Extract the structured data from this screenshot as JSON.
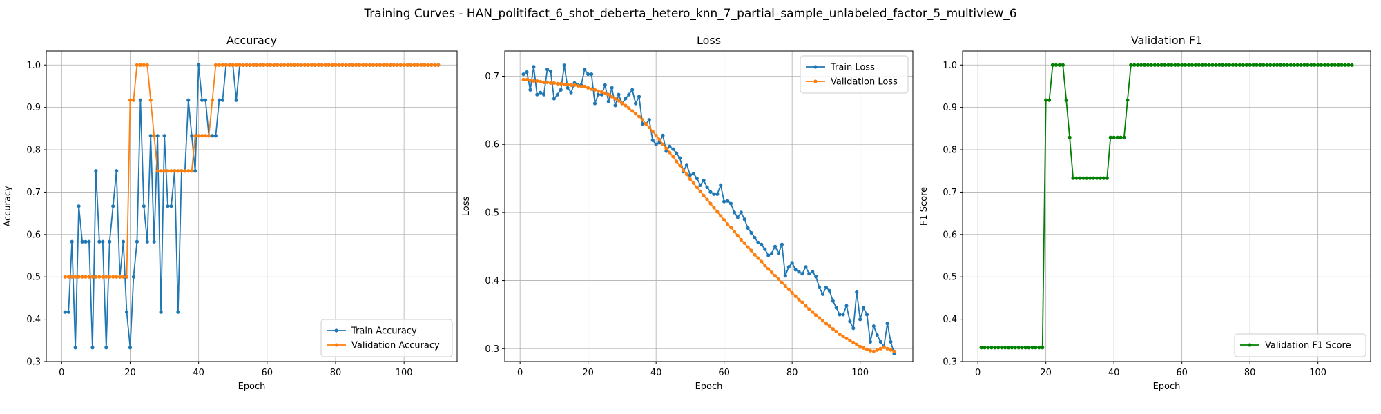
{
  "figure": {
    "title": "Training Curves - HAN_politifact_6_shot_deberta_hetero_knn_7_partial_sample_unlabeled_factor_5_multiview_6"
  },
  "chart_data": [
    {
      "type": "line",
      "title": "Accuracy",
      "xlabel": "Epoch",
      "ylabel": "Accuracy",
      "xlim": [
        -4.5,
        115.5
      ],
      "ylim": [
        0.3,
        1.033
      ],
      "xticks": [
        0,
        20,
        40,
        60,
        80,
        100
      ],
      "yticks": [
        0.3,
        0.4,
        0.5,
        0.6,
        0.7,
        0.8,
        0.9,
        1.0
      ],
      "ytick_format": "1",
      "grid": true,
      "legend": "lower right",
      "series": [
        {
          "name": "Train Accuracy",
          "color": "#1f77b4",
          "segments": [
            {
              "x0": 1,
              "values": [
                0.417,
                0.417,
                0.583,
                0.333,
                0.667,
                0.583,
                0.583,
                0.583,
                0.333,
                0.75,
                0.583,
                0.583,
                0.333,
                0.583,
                0.667,
                0.75,
                0.5,
                0.583,
                0.417,
                0.333,
                0.5,
                0.583,
                0.917,
                0.667,
                0.583,
                0.833,
                0.583,
                0.833,
                0.417,
                0.833,
                0.667,
                0.667,
                0.75,
                0.417,
                0.75,
                0.75,
                0.917,
                0.833,
                0.75,
                1.0,
                0.917,
                0.917,
                0.833,
                0.833,
                0.833,
                0.917,
                0.917,
                1.0,
                1.0,
                1.0,
                0.917,
                1.0
              ]
            },
            {
              "x0": 53,
              "x1": 110,
              "value": 1.0
            }
          ]
        },
        {
          "name": "Validation Accuracy",
          "color": "#ff7f0e",
          "segments": [
            {
              "x0": 1,
              "values": [
                0.5,
                0.5,
                0.5,
                0.5,
                0.5,
                0.5,
                0.5,
                0.5,
                0.5,
                0.5,
                0.5,
                0.5,
                0.5,
                0.5,
                0.5,
                0.5,
                0.5,
                0.5,
                0.5,
                0.917,
                0.917,
                1.0,
                1.0,
                1.0,
                1.0,
                0.917,
                0.833,
                0.75,
                0.75,
                0.75,
                0.75,
                0.75,
                0.75,
                0.75,
                0.75,
                0.75,
                0.75,
                0.75,
                0.833,
                0.833,
                0.833,
                0.833,
                0.833,
                0.917,
                1.0
              ]
            },
            {
              "x0": 46,
              "x1": 110,
              "value": 1.0
            }
          ]
        }
      ]
    },
    {
      "type": "line",
      "title": "Loss",
      "xlabel": "Epoch",
      "ylabel": "Loss",
      "xlim": [
        -4.5,
        115.5
      ],
      "ylim": [
        0.281,
        0.737
      ],
      "xticks": [
        0,
        20,
        40,
        60,
        80,
        100
      ],
      "yticks": [
        0.3,
        0.4,
        0.5,
        0.6,
        0.7
      ],
      "ytick_format": "1",
      "grid": true,
      "legend": "upper right",
      "series": [
        {
          "name": "Train Loss",
          "color": "#1f77b4",
          "segments": [
            {
              "x0": 1,
              "values": [
                0.703,
                0.706,
                0.68,
                0.714,
                0.673,
                0.676,
                0.673,
                0.71,
                0.707,
                0.667,
                0.673,
                0.68,
                0.716,
                0.683,
                0.676,
                0.69,
                0.687,
                0.687,
                0.71,
                0.703,
                0.703,
                0.66,
                0.673,
                0.673,
                0.687,
                0.663,
                0.683,
                0.657,
                0.673,
                0.66,
                0.667,
                0.673,
                0.68,
                0.66,
                0.67,
                0.63,
                0.63,
                0.636,
                0.606,
                0.6,
                0.603,
                0.613,
                0.59,
                0.597,
                0.593,
                0.587,
                0.58,
                0.56,
                0.57,
                0.555,
                0.557,
                0.55,
                0.54,
                0.547,
                0.537,
                0.53,
                0.527,
                0.527,
                0.54,
                0.516,
                0.517,
                0.513,
                0.5,
                0.493,
                0.5,
                0.49,
                0.477,
                0.47,
                0.463,
                0.456,
                0.453,
                0.446,
                0.437,
                0.44,
                0.45,
                0.44,
                0.453,
                0.407,
                0.42,
                0.426,
                0.416,
                0.413,
                0.41,
                0.42,
                0.41,
                0.413,
                0.406,
                0.39,
                0.38,
                0.39,
                0.385,
                0.37,
                0.36,
                0.35,
                0.35,
                0.363,
                0.34,
                0.33,
                0.383,
                0.343,
                0.36,
                0.35,
                0.31,
                0.333,
                0.32,
                0.31,
                0.303,
                0.337,
                0.31,
                0.293
              ]
            }
          ]
        },
        {
          "name": "Validation Loss",
          "color": "#ff7f0e",
          "segments": [
            {
              "x0": 1,
              "values": [
                0.695,
                0.695,
                0.694,
                0.693,
                0.693,
                0.692,
                0.691,
                0.691,
                0.69,
                0.69,
                0.689,
                0.689,
                0.688,
                0.688,
                0.687,
                0.687,
                0.686,
                0.685,
                0.685,
                0.683,
                0.681,
                0.68,
                0.678,
                0.677,
                0.675,
                0.673,
                0.67,
                0.667,
                0.664,
                0.66,
                0.657,
                0.653,
                0.649,
                0.645,
                0.641,
                0.636,
                0.63,
                0.625,
                0.619,
                0.613,
                0.607,
                0.6,
                0.594,
                0.588,
                0.582,
                0.575,
                0.569,
                0.562,
                0.556,
                0.549,
                0.543,
                0.537,
                0.531,
                0.525,
                0.519,
                0.513,
                0.507,
                0.501,
                0.495,
                0.489,
                0.483,
                0.478,
                0.472,
                0.466,
                0.46,
                0.455,
                0.449,
                0.444,
                0.438,
                0.433,
                0.428,
                0.422,
                0.417,
                0.412,
                0.407,
                0.402,
                0.397,
                0.392,
                0.387,
                0.382,
                0.377,
                0.372,
                0.368,
                0.363,
                0.358,
                0.354,
                0.349,
                0.345,
                0.341,
                0.337,
                0.333,
                0.329,
                0.325,
                0.321,
                0.318,
                0.315,
                0.312,
                0.309,
                0.306,
                0.303,
                0.301,
                0.299,
                0.297,
                0.296,
                0.298,
                0.3,
                0.302,
                0.3,
                0.298,
                0.296
              ]
            }
          ]
        }
      ]
    },
    {
      "type": "line",
      "title": "Validation F1",
      "xlabel": "Epoch",
      "ylabel": "F1 Score",
      "xlim": [
        -4.5,
        115.5
      ],
      "ylim": [
        0.3,
        1.033
      ],
      "xticks": [
        0,
        20,
        40,
        60,
        80,
        100
      ],
      "yticks": [
        0.3,
        0.4,
        0.5,
        0.6,
        0.7,
        0.8,
        0.9,
        1.0
      ],
      "ytick_format": "1",
      "grid": true,
      "legend": "lower right",
      "series": [
        {
          "name": "Validation F1 Score",
          "color": "#008000",
          "segments": [
            {
              "x0": 1,
              "values": [
                0.333,
                0.333,
                0.333,
                0.333,
                0.333,
                0.333,
                0.333,
                0.333,
                0.333,
                0.333,
                0.333,
                0.333,
                0.333,
                0.333,
                0.333,
                0.333,
                0.333,
                0.333,
                0.333,
                0.917,
                0.917,
                1.0,
                1.0,
                1.0,
                1.0,
                0.917,
                0.829,
                0.733,
                0.733,
                0.733,
                0.733,
                0.733,
                0.733,
                0.733,
                0.733,
                0.733,
                0.733,
                0.733,
                0.829,
                0.829,
                0.829,
                0.829,
                0.829,
                0.917,
                1.0
              ]
            },
            {
              "x0": 46,
              "x1": 110,
              "value": 1.0
            }
          ]
        }
      ]
    }
  ]
}
